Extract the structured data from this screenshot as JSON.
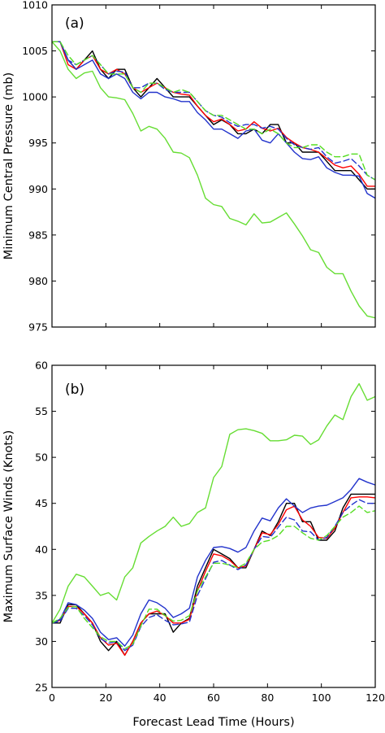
{
  "chart_data": [
    {
      "type": "line",
      "panel_label": "(a)",
      "title": "",
      "xlabel": "",
      "ylabel": "Minimum Central Pressure (mb)",
      "xlim": [
        0,
        120
      ],
      "ylim": [
        975,
        1010
      ],
      "xticks": [
        0,
        20,
        40,
        60,
        80,
        100,
        120
      ],
      "yticks": [
        975,
        980,
        985,
        990,
        995,
        1000,
        1005,
        1010
      ],
      "grid": false,
      "legend": "none",
      "series": [
        {
          "color": "#000000",
          "dash": "solid",
          "x": [
            0,
            3,
            6,
            9,
            12,
            15,
            18,
            21,
            24,
            27,
            30,
            33,
            36,
            39,
            42,
            45,
            48,
            51,
            54,
            57,
            60,
            63,
            66,
            69,
            72,
            75,
            78,
            81,
            84,
            87,
            90,
            93,
            96,
            99,
            102,
            105,
            108,
            111,
            114,
            117,
            120
          ],
          "values": [
            1006,
            1006,
            1004,
            1003,
            1004,
            1005,
            1003,
            1002,
            1003,
            1003,
            1001,
            1000,
            1001,
            1002,
            1001,
            1000,
            1000,
            1000,
            999,
            998,
            997,
            997.5,
            997,
            996,
            996,
            996.5,
            996,
            997,
            997,
            995,
            995,
            994,
            994,
            994,
            993,
            992,
            992,
            992,
            991,
            990,
            990
          ]
        },
        {
          "color": "#ff0000",
          "dash": "solid",
          "x": [
            0,
            3,
            6,
            9,
            12,
            15,
            18,
            21,
            24,
            27,
            30,
            33,
            36,
            39,
            42,
            45,
            48,
            51,
            54,
            57,
            60,
            63,
            66,
            69,
            72,
            75,
            78,
            81,
            84,
            87,
            90,
            93,
            96,
            99,
            102,
            105,
            108,
            111,
            114,
            117,
            120
          ],
          "values": [
            1006,
            1006,
            1003.5,
            1003,
            1004,
            1004.5,
            1003,
            1002.5,
            1003,
            1002.5,
            1001,
            1000.5,
            1001,
            1001.5,
            1001,
            1000.5,
            1000.3,
            1000.2,
            999,
            998,
            997.3,
            997.6,
            997,
            996.3,
            996.5,
            997.3,
            996.6,
            996.3,
            996.6,
            995.6,
            995,
            994.5,
            994.3,
            994,
            993.3,
            992.6,
            992.3,
            992.5,
            991.6,
            990.3,
            990.3
          ]
        },
        {
          "color": "#2233cc",
          "dash": "solid",
          "x": [
            0,
            3,
            6,
            9,
            12,
            15,
            18,
            21,
            24,
            27,
            30,
            33,
            36,
            39,
            42,
            45,
            48,
            51,
            54,
            57,
            60,
            63,
            66,
            69,
            72,
            75,
            78,
            81,
            84,
            87,
            90,
            93,
            96,
            99,
            102,
            105,
            108,
            111,
            114,
            117,
            120
          ],
          "values": [
            1006,
            1006,
            1004,
            1003,
            1003.5,
            1004,
            1002.5,
            1002,
            1002.5,
            1002,
            1000.5,
            999.8,
            1000.5,
            1000.5,
            1000,
            999.8,
            999.5,
            999.5,
            998.3,
            997.5,
            996.5,
            996.5,
            996,
            995.5,
            996.3,
            996.5,
            995.3,
            995,
            996,
            995,
            994,
            993.3,
            993.2,
            993.5,
            992.3,
            991.8,
            991.5,
            991.5,
            991.4,
            989.5,
            989
          ]
        },
        {
          "color": "#2233cc",
          "dash": "dashed",
          "x": [
            0,
            3,
            6,
            9,
            12,
            15,
            18,
            21,
            24,
            27,
            30,
            33,
            36,
            39,
            42,
            45,
            48,
            51,
            54,
            57,
            60,
            63,
            66,
            69,
            72,
            75,
            78,
            81,
            84,
            87,
            90,
            93,
            96,
            99,
            102,
            105,
            108,
            111,
            114,
            117,
            120
          ],
          "values": [
            1006,
            1006,
            1004,
            1003.5,
            1004,
            1004.5,
            1003.5,
            1002.5,
            1002.8,
            1002.7,
            1001,
            1001,
            1001.5,
            1001.5,
            1000.8,
            1000.5,
            1000.5,
            1000.5,
            999.5,
            998.5,
            998,
            997.8,
            997.2,
            996.8,
            997,
            997,
            996.6,
            996.8,
            996.5,
            995.5,
            994.8,
            994.5,
            994.3,
            994.5,
            993.5,
            992.8,
            993,
            993.3,
            992.5,
            991.5,
            991
          ]
        },
        {
          "color": "#55dd22",
          "dash": "dashed",
          "x": [
            0,
            3,
            6,
            9,
            12,
            15,
            18,
            21,
            24,
            27,
            30,
            33,
            36,
            39,
            42,
            45,
            48,
            51,
            54,
            57,
            60,
            63,
            66,
            69,
            72,
            75,
            78,
            81,
            84,
            87,
            90,
            93,
            96,
            99,
            102,
            105,
            108,
            111,
            114,
            117,
            120
          ],
          "values": [
            1006,
            1006,
            1004.5,
            1003.5,
            1004,
            1004.5,
            1003.5,
            1002.5,
            1002.5,
            1002.5,
            1001,
            1000.5,
            1001.5,
            1001.5,
            1001,
            1000.5,
            1000.8,
            1000.5,
            999.5,
            998.5,
            998,
            998,
            997.5,
            997,
            996.5,
            996.5,
            996,
            996.5,
            996,
            995,
            994.5,
            994.5,
            994.8,
            994.8,
            994,
            993.5,
            993.5,
            993.8,
            993.8,
            991.5,
            991
          ]
        },
        {
          "color": "#66dd33",
          "dash": "solid",
          "x": [
            0,
            3,
            6,
            9,
            12,
            15,
            18,
            21,
            24,
            27,
            30,
            33,
            36,
            39,
            42,
            45,
            48,
            51,
            54,
            57,
            60,
            63,
            66,
            69,
            72,
            75,
            78,
            81,
            84,
            87,
            90,
            93,
            96,
            99,
            102,
            105,
            108,
            111,
            114,
            117,
            120
          ],
          "values": [
            1006,
            1005,
            1003,
            1002,
            1002.6,
            1002.8,
            1001,
            1000,
            999.9,
            999.7,
            998.2,
            996.3,
            996.8,
            996.5,
            995.5,
            994,
            993.9,
            993.4,
            991.5,
            989,
            988.3,
            988.1,
            986.8,
            986.5,
            986.1,
            987.3,
            986.3,
            986.4,
            986.9,
            987.4,
            986.2,
            984.9,
            983.4,
            983.1,
            981.5,
            980.8,
            980.8,
            978.9,
            977.3,
            976.2,
            976
          ]
        }
      ]
    },
    {
      "type": "line",
      "panel_label": "(b)",
      "title": "",
      "xlabel": "Forecast Lead Time (Hours)",
      "ylabel": "Maximum Surface Winds (Knots)",
      "xlim": [
        0,
        120
      ],
      "ylim": [
        25,
        60
      ],
      "xticks": [
        0,
        20,
        40,
        60,
        80,
        100,
        120
      ],
      "yticks": [
        25,
        30,
        35,
        40,
        45,
        50,
        55,
        60
      ],
      "grid": false,
      "legend": "none",
      "series": [
        {
          "color": "#000000",
          "dash": "solid",
          "x": [
            0,
            3,
            6,
            9,
            12,
            15,
            18,
            21,
            24,
            27,
            30,
            33,
            36,
            39,
            42,
            45,
            48,
            51,
            54,
            57,
            60,
            63,
            66,
            69,
            72,
            75,
            78,
            81,
            84,
            87,
            90,
            93,
            96,
            99,
            102,
            105,
            108,
            111,
            114,
            117,
            120
          ],
          "values": [
            32,
            32,
            34,
            34,
            33,
            32,
            30,
            29,
            30,
            28.5,
            30,
            32,
            33,
            33,
            33,
            31,
            32,
            32.5,
            36,
            38,
            40,
            39.5,
            39,
            38,
            38,
            40,
            42,
            41.5,
            43,
            45,
            45,
            43,
            43,
            41,
            41,
            42,
            44.5,
            46,
            46,
            46,
            46
          ]
        },
        {
          "color": "#ff0000",
          "dash": "solid",
          "x": [
            0,
            3,
            6,
            9,
            12,
            15,
            18,
            21,
            24,
            27,
            30,
            33,
            36,
            39,
            42,
            45,
            48,
            51,
            54,
            57,
            60,
            63,
            66,
            69,
            72,
            75,
            78,
            81,
            84,
            87,
            90,
            93,
            96,
            99,
            102,
            105,
            108,
            111,
            114,
            117,
            120
          ],
          "values": [
            32,
            32.3,
            33.8,
            33.8,
            33,
            32,
            30.4,
            29.6,
            29.8,
            28.5,
            30,
            32,
            33,
            33.3,
            32.8,
            32,
            32,
            32.4,
            35.5,
            37.6,
            39.5,
            39.3,
            38.8,
            38,
            38.2,
            40,
            41.8,
            41.6,
            42.7,
            44.3,
            44.7,
            43.2,
            42.5,
            41.3,
            41.2,
            42.3,
            44,
            45.6,
            45.7,
            45.7,
            45.6
          ]
        },
        {
          "color": "#2233cc",
          "dash": "solid",
          "x": [
            0,
            3,
            6,
            9,
            12,
            15,
            18,
            21,
            24,
            27,
            30,
            33,
            36,
            39,
            42,
            45,
            48,
            51,
            54,
            57,
            60,
            63,
            66,
            69,
            72,
            75,
            78,
            81,
            84,
            87,
            90,
            93,
            96,
            99,
            102,
            105,
            108,
            111,
            114,
            117,
            120
          ],
          "values": [
            32,
            32.4,
            34.2,
            34,
            33.4,
            32.5,
            31,
            30.2,
            30.4,
            29.5,
            30.7,
            33,
            34.5,
            34.2,
            33.6,
            32.6,
            33,
            33.6,
            37,
            38.8,
            40.2,
            40.3,
            40.1,
            39.7,
            40.2,
            42,
            43.4,
            43.1,
            44.5,
            45.5,
            44.7,
            44,
            44.5,
            44.7,
            44.8,
            45.2,
            45.6,
            46.5,
            47.7,
            47.3,
            47
          ]
        },
        {
          "color": "#2233cc",
          "dash": "dashed",
          "x": [
            0,
            3,
            6,
            9,
            12,
            15,
            18,
            21,
            24,
            27,
            30,
            33,
            36,
            39,
            42,
            45,
            48,
            51,
            54,
            57,
            60,
            63,
            66,
            69,
            72,
            75,
            78,
            81,
            84,
            87,
            90,
            93,
            96,
            99,
            102,
            105,
            108,
            111,
            114,
            117,
            120
          ],
          "values": [
            32,
            32.2,
            33.6,
            33.6,
            32.8,
            31.8,
            30.3,
            29.8,
            30,
            29,
            29.6,
            31.6,
            32.6,
            32.9,
            32.3,
            31.8,
            31.9,
            32.1,
            35,
            36.8,
            38.6,
            38.8,
            38.3,
            37.8,
            38.3,
            40,
            41.4,
            41.3,
            42.4,
            43.5,
            43.2,
            42,
            41.9,
            41,
            41.3,
            42.5,
            44,
            44.8,
            45.4,
            45,
            45
          ]
        },
        {
          "color": "#55dd22",
          "dash": "dashed",
          "x": [
            0,
            3,
            6,
            9,
            12,
            15,
            18,
            21,
            24,
            27,
            30,
            33,
            36,
            39,
            42,
            45,
            48,
            51,
            54,
            57,
            60,
            63,
            66,
            69,
            72,
            75,
            78,
            81,
            84,
            87,
            90,
            93,
            96,
            99,
            102,
            105,
            108,
            111,
            114,
            117,
            120
          ],
          "values": [
            32,
            32.5,
            33.7,
            33.8,
            32.5,
            31.5,
            30.5,
            30,
            30,
            29.2,
            29.7,
            31.7,
            33.5,
            33.5,
            32.8,
            32.2,
            32.3,
            32.8,
            35.5,
            37,
            38.5,
            38.5,
            38.3,
            38,
            38.5,
            40,
            40.8,
            41,
            41.5,
            42.5,
            42.5,
            41.8,
            41.2,
            41,
            41.5,
            42.5,
            43.5,
            44,
            44.7,
            44,
            44.2
          ]
        },
        {
          "color": "#66dd33",
          "dash": "solid",
          "x": [
            0,
            3,
            6,
            9,
            12,
            15,
            18,
            21,
            24,
            27,
            30,
            33,
            36,
            39,
            42,
            45,
            48,
            51,
            54,
            57,
            60,
            63,
            66,
            69,
            72,
            75,
            78,
            81,
            84,
            87,
            90,
            93,
            96,
            99,
            102,
            105,
            108,
            111,
            114,
            117,
            120
          ],
          "values": [
            32,
            33.5,
            36,
            37.3,
            37,
            36,
            35,
            35.3,
            34.5,
            37,
            38,
            40.7,
            41.4,
            42,
            42.5,
            43.5,
            42.5,
            42.8,
            44,
            44.5,
            47.8,
            49,
            52.5,
            53,
            53.1,
            52.9,
            52.6,
            51.8,
            51.8,
            51.9,
            52.4,
            52.3,
            51.4,
            51.9,
            53.4,
            54.6,
            54.1,
            56.6,
            58,
            56.2,
            56.6
          ]
        }
      ]
    }
  ]
}
